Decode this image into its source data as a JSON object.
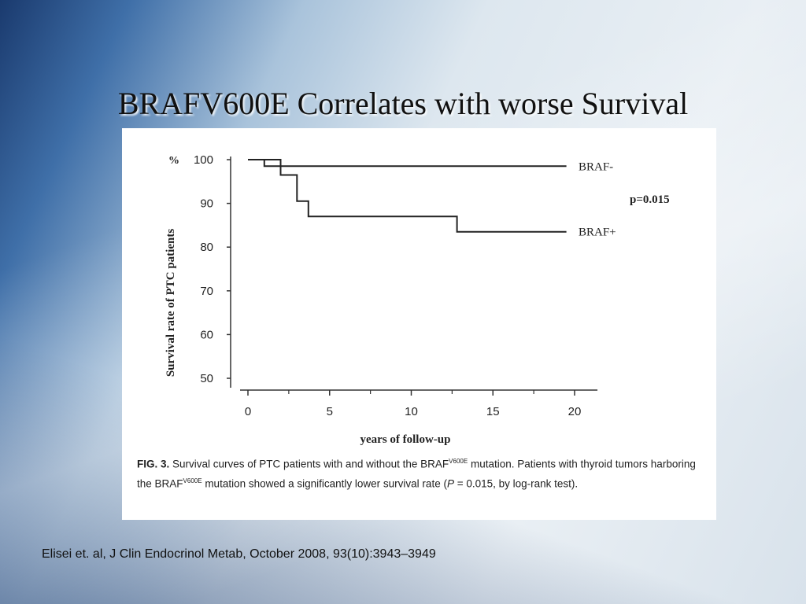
{
  "slide": {
    "title": "BRAFV600E Correlates with worse Survival",
    "citation": "Elisei et. al, J Clin Endocrinol Metab, October 2008, 93(10):3943–3949"
  },
  "chart_data": {
    "type": "line",
    "step": true,
    "title": "",
    "xlabel": "years of follow-up",
    "ylabel": "Survival rate of PTC patients",
    "y_unit": "%",
    "xlim": [
      0,
      21
    ],
    "ylim": [
      50,
      100
    ],
    "x_ticks": [
      0,
      5,
      10,
      15,
      20
    ],
    "y_ticks": [
      50,
      60,
      70,
      80,
      90,
      100
    ],
    "grid": false,
    "annotation": "p=0.015",
    "series": [
      {
        "name": "BRAF-",
        "points": [
          [
            0,
            100
          ],
          [
            1,
            100
          ],
          [
            1,
            98.5
          ],
          [
            19.5,
            98.5
          ]
        ]
      },
      {
        "name": "BRAF+",
        "points": [
          [
            0,
            100
          ],
          [
            2,
            100
          ],
          [
            2,
            96.5
          ],
          [
            3,
            96.5
          ],
          [
            3,
            90.5
          ],
          [
            3.7,
            90.5
          ],
          [
            3.7,
            87
          ],
          [
            12.8,
            87
          ],
          [
            12.8,
            83.5
          ],
          [
            19.5,
            83.5
          ]
        ]
      }
    ]
  },
  "caption": {
    "label": "FIG. 3.",
    "text_1": " Survival curves of PTC patients with and without the BRAF",
    "sup_1": "V600E",
    "text_2": " mutation. Patients with thyroid tumors harboring the BRAF",
    "sup_2": "V600E",
    "text_3": " mutation showed a significantly lower survival rate (",
    "p_italic": "P",
    "text_4": " = 0.015, by log-rank test)."
  }
}
